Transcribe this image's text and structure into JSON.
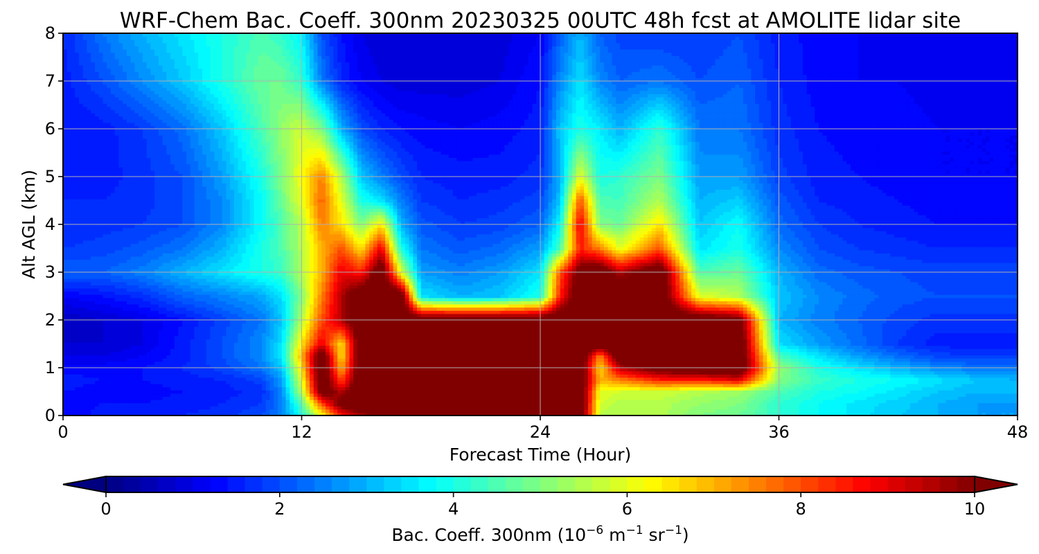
{
  "chart_data": {
    "type": "heatmap",
    "title": "WRF-Chem Bac. Coeff. 300nm  20230325 00UTC 48h fcst at AMOLITE lidar site",
    "xlabel": "Forecast Time (Hour)",
    "ylabel": "Alt AGL (km)",
    "xlim": [
      0,
      48
    ],
    "ylim": [
      0,
      8
    ],
    "x_ticks": [
      "0",
      "12",
      "24",
      "36",
      "48"
    ],
    "y_ticks": [
      "0",
      "1",
      "2",
      "3",
      "4",
      "5",
      "6",
      "7",
      "8"
    ],
    "grid": true,
    "colormap": "jet",
    "colorbar": {
      "orientation": "horizontal",
      "placement": "bottom",
      "range": [
        0,
        10
      ],
      "extend": "both",
      "ticks": [
        "0",
        "2",
        "4",
        "6",
        "8",
        "10"
      ],
      "label_main": "Bac. Coeff. 300nm  (10",
      "label_exp1": "−6",
      "label_mid": " m",
      "label_exp2": "−1",
      "label_mid2": " sr",
      "label_exp3": "−1",
      "label_end": ")"
    },
    "x": [
      0,
      2,
      4,
      6,
      8,
      10,
      11,
      12,
      13,
      14,
      15,
      16,
      17,
      18,
      20,
      22,
      24,
      25,
      26,
      27,
      28,
      30,
      32,
      34,
      36,
      38,
      40,
      42,
      44,
      46,
      48
    ],
    "y": [
      0,
      0.25,
      0.5,
      0.75,
      1,
      1.25,
      1.5,
      2,
      2.5,
      3,
      3.5,
      4,
      4.5,
      5,
      6,
      7,
      8
    ],
    "z": [
      [
        1.2,
        1.5,
        1.5,
        1.6,
        1.7,
        2.0,
        2.5,
        4.0,
        6.0,
        8.5,
        9.5,
        10.5,
        10.5,
        11,
        11,
        11,
        11,
        11,
        11,
        5.5,
        5.5,
        5.5,
        5.0,
        4.8,
        4.2,
        3.8,
        3.5,
        3.2,
        3.0,
        2.8,
        2.8
      ],
      [
        1.3,
        1.4,
        1.4,
        1.5,
        1.6,
        1.8,
        2.5,
        4.5,
        8.0,
        10.5,
        11,
        11,
        11,
        11,
        11,
        11,
        11,
        11,
        11,
        5.8,
        5.5,
        5.5,
        5.2,
        5.0,
        4.2,
        3.8,
        3.5,
        3.3,
        3.0,
        2.8,
        2.8
      ],
      [
        1.4,
        1.3,
        1.3,
        1.4,
        1.5,
        1.7,
        2.6,
        5.5,
        10.5,
        9.5,
        11,
        11,
        11,
        11,
        11,
        11,
        11,
        11,
        11,
        6.0,
        5.8,
        5.8,
        5.5,
        5.3,
        4.5,
        4.0,
        3.8,
        3.5,
        3.2,
        3.0,
        3.0
      ],
      [
        1.5,
        1.4,
        1.4,
        1.5,
        1.6,
        1.9,
        2.8,
        6.0,
        11,
        8.0,
        11,
        11,
        11,
        11,
        11,
        11,
        11,
        11,
        11,
        7.0,
        7.5,
        8.5,
        8.5,
        9.0,
        5.0,
        4.3,
        4.0,
        3.8,
        3.5,
        3.2,
        3.0
      ],
      [
        1.3,
        1.3,
        1.4,
        1.6,
        1.9,
        2.4,
        3.2,
        6.5,
        11,
        7.0,
        11,
        11,
        11,
        11,
        11,
        11,
        11,
        11,
        11,
        6.5,
        9.5,
        10.5,
        11,
        11,
        5.2,
        4.0,
        3.5,
        3.0,
        2.6,
        2.4,
        2.4
      ],
      [
        1.0,
        1.0,
        1.2,
        1.5,
        2.0,
        2.6,
        3.6,
        7.0,
        11,
        6.5,
        11,
        11,
        11,
        11,
        11,
        11,
        11,
        11,
        11,
        7.5,
        11,
        11,
        11,
        11,
        4.5,
        3.5,
        2.8,
        2.3,
        1.9,
        1.8,
        1.8
      ],
      [
        0.8,
        0.8,
        1.0,
        1.5,
        2.0,
        2.6,
        3.5,
        6.5,
        9.0,
        6.5,
        11,
        11,
        11,
        11,
        11,
        11,
        11,
        11,
        11,
        11,
        11,
        11,
        11,
        11,
        3.5,
        2.8,
        2.3,
        1.8,
        1.5,
        1.5,
        1.5
      ],
      [
        0.6,
        0.8,
        1.0,
        1.4,
        1.9,
        2.4,
        3.2,
        5.5,
        8.0,
        9.5,
        11,
        11,
        11,
        11,
        11,
        11,
        11,
        11,
        11,
        11,
        11,
        11,
        11,
        10.5,
        3.0,
        2.5,
        2.2,
        1.9,
        1.7,
        1.7,
        1.7
      ],
      [
        1.2,
        1.4,
        1.7,
        2.2,
        2.5,
        2.9,
        3.5,
        5.0,
        7.5,
        9.5,
        11,
        11,
        11,
        3.5,
        3.0,
        3.2,
        4.0,
        8.5,
        11,
        11,
        11,
        11,
        6.0,
        5.5,
        3.2,
        2.6,
        2.3,
        2.1,
        2.0,
        2.0,
        2.0
      ],
      [
        2.2,
        2.2,
        2.5,
        3.0,
        3.5,
        4.0,
        4.3,
        5.5,
        7.0,
        9.0,
        8.5,
        11,
        6.0,
        2.8,
        2.5,
        2.8,
        3.5,
        8.0,
        10.5,
        11,
        9.5,
        11,
        4.5,
        4.8,
        3.0,
        2.3,
        2.1,
        2.0,
        1.9,
        1.9,
        1.9
      ],
      [
        1.8,
        1.9,
        2.1,
        2.4,
        3.0,
        4.0,
        4.5,
        5.5,
        7.0,
        8.0,
        6.5,
        9.0,
        4.0,
        2.4,
        2.1,
        2.3,
        2.8,
        4.5,
        8.5,
        7.5,
        6.0,
        8.0,
        3.5,
        4.0,
        2.6,
        2.0,
        1.8,
        1.7,
        1.6,
        1.6,
        1.6
      ],
      [
        1.6,
        1.7,
        1.8,
        2.0,
        2.6,
        3.8,
        4.5,
        5.5,
        7.5,
        6.5,
        5.0,
        6.5,
        3.0,
        2.1,
        1.8,
        1.9,
        2.2,
        3.8,
        9.0,
        5.0,
        4.8,
        6.5,
        3.2,
        3.8,
        2.3,
        1.8,
        1.6,
        1.5,
        1.4,
        1.4,
        1.4
      ],
      [
        1.6,
        1.6,
        1.7,
        2.0,
        2.6,
        3.8,
        4.8,
        6.0,
        7.8,
        6.0,
        4.0,
        3.5,
        2.5,
        1.8,
        1.6,
        1.7,
        1.9,
        3.2,
        8.0,
        4.5,
        4.4,
        5.5,
        3.0,
        3.3,
        2.1,
        1.6,
        1.5,
        1.4,
        1.3,
        1.3,
        1.3
      ],
      [
        1.5,
        1.5,
        1.7,
        2.0,
        2.8,
        4.0,
        5.0,
        6.2,
        7.5,
        5.5,
        3.2,
        2.5,
        2.0,
        1.6,
        1.5,
        1.5,
        1.7,
        3.0,
        6.0,
        4.0,
        4.2,
        5.0,
        2.8,
        2.8,
        1.9,
        1.5,
        1.4,
        1.3,
        1.2,
        1.2,
        1.2
      ],
      [
        1.4,
        1.5,
        1.8,
        2.3,
        3.2,
        4.5,
        5.2,
        5.8,
        5.0,
        3.0,
        2.0,
        1.6,
        1.4,
        1.3,
        1.2,
        1.3,
        1.5,
        3.2,
        4.0,
        3.6,
        3.0,
        4.2,
        2.4,
        2.4,
        1.7,
        1.4,
        1.3,
        1.3,
        1.2,
        1.2,
        1.2
      ],
      [
        1.5,
        2.0,
        2.6,
        3.2,
        4.0,
        4.8,
        4.8,
        4.2,
        2.5,
        1.6,
        1.2,
        1.0,
        0.9,
        0.9,
        0.9,
        1.0,
        1.4,
        2.6,
        3.5,
        2.6,
        2.2,
        2.4,
        2.0,
        2.2,
        1.6,
        1.3,
        1.2,
        1.2,
        1.1,
        1.1,
        1.1
      ],
      [
        1.6,
        2.4,
        3.0,
        3.5,
        4.0,
        4.5,
        4.2,
        3.6,
        2.0,
        1.4,
        1.0,
        0.8,
        0.8,
        0.8,
        0.8,
        0.9,
        1.2,
        2.2,
        3.0,
        2.2,
        1.9,
        1.8,
        1.8,
        2.0,
        1.5,
        1.3,
        1.2,
        1.1,
        1.1,
        1.1,
        1.1
      ]
    ]
  }
}
